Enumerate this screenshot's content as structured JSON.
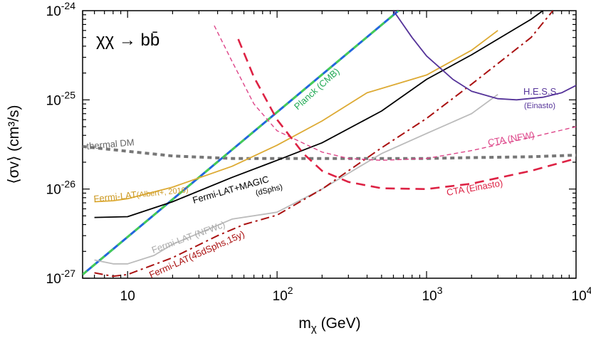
{
  "chart_data": {
    "type": "line",
    "title": "",
    "process_label": "χχ → bb̄",
    "xlabel": "m",
    "xlabel_sub": "χ",
    "xlabel_unit": " (GeV)",
    "ylabel": "⟨σv⟩ (cm³/s)",
    "xscale": "log",
    "yscale": "log",
    "xlim": [
      5,
      10000
    ],
    "ylim": [
      1e-27,
      1e-24
    ],
    "x_ticks": [
      {
        "value": 10,
        "label": "10"
      },
      {
        "value": 100,
        "base": "10",
        "exp": "2"
      },
      {
        "value": 1000,
        "base": "10",
        "exp": "3"
      },
      {
        "value": 10000,
        "base": "10",
        "exp": "4"
      }
    ],
    "y_ticks": [
      {
        "value": 1e-27,
        "base": "10",
        "exp": "-27"
      },
      {
        "value": 1e-26,
        "base": "10",
        "exp": "-26"
      },
      {
        "value": 1e-25,
        "base": "10",
        "exp": "-25"
      },
      {
        "value": 1e-24,
        "base": "10",
        "exp": "-24"
      }
    ],
    "grid": false,
    "series": [
      {
        "key": "thermal",
        "name": "thermal DM",
        "color": "#777777",
        "style": "dotted-thick",
        "x": [
          5,
          10,
          20,
          50,
          100,
          200,
          500,
          1000,
          2000,
          5000,
          10000
        ],
        "y": [
          3e-26,
          2.65e-26,
          2.35e-26,
          2.2e-26,
          2.2e-26,
          2.2e-26,
          2.2e-26,
          2.2e-26,
          2.25e-26,
          2.3e-26,
          2.4e-26
        ]
      },
      {
        "key": "planck",
        "name": "Planck (CMB)",
        "color": "#2266dd",
        "style": "planck",
        "x": [
          5,
          650
        ],
        "y": [
          1.1e-27,
          1e-24
        ]
      },
      {
        "key": "fermi_albert",
        "name": "Fermi-LAT",
        "name_suffix": "(Albert+, 2016)",
        "color": "#ddaa33",
        "style": "solid",
        "x": [
          6,
          8,
          10,
          20,
          50,
          100,
          200,
          400,
          800,
          1000,
          2000,
          3000
        ],
        "y": [
          7.2e-27,
          7.4e-27,
          7.8e-27,
          1.05e-26,
          1.8e-26,
          3.1e-26,
          5.8e-26,
          1.2e-25,
          1.7e-25,
          1.9e-25,
          3.6e-25,
          6e-25
        ]
      },
      {
        "key": "fermi_magic",
        "name": "Fermi-LAT+MAGIC",
        "name_suffix": "(dSphs)",
        "color": "#000000",
        "style": "solid",
        "x": [
          6,
          10,
          20,
          50,
          100,
          200,
          500,
          1000,
          2000,
          5000,
          6000
        ],
        "y": [
          4.8e-27,
          4.9e-27,
          7.2e-27,
          1.35e-26,
          2.1e-26,
          3.3e-26,
          7.5e-26,
          1.7e-25,
          3.2e-25,
          8e-25,
          1e-24
        ]
      },
      {
        "key": "fermi_nfwc",
        "name": "Fermi-LAT (NFWc)",
        "color": "#bbbbbb",
        "style": "solid",
        "x": [
          6,
          8,
          10,
          15,
          20,
          30,
          50,
          100,
          200,
          300,
          500,
          1000,
          2000,
          3000
        ],
        "y": [
          1.6e-27,
          1.45e-27,
          1.45e-27,
          1.8e-27,
          2.4e-27,
          3.2e-27,
          4.6e-27,
          5.5e-27,
          1e-26,
          1.5e-26,
          2.5e-26,
          4.2e-26,
          7e-26,
          1.15e-25
        ]
      },
      {
        "key": "fermi_45d",
        "name": "Fermi-LAT",
        "name_suffix": "(45dSphs,15y)",
        "color": "#aa1111",
        "style": "dashdot",
        "x": [
          6,
          8,
          10,
          20,
          40,
          60,
          100,
          200,
          500,
          1000,
          2000,
          5000,
          7000
        ],
        "y": [
          1.15e-27,
          1.05e-27,
          1.1e-27,
          1.7e-27,
          3e-27,
          4e-27,
          5.1e-27,
          1e-26,
          2.9e-26,
          6.2e-26,
          1.5e-25,
          5e-25,
          1e-24
        ]
      },
      {
        "key": "hess",
        "name": "H.E.S.S.",
        "name_suffix": "(Einasto)",
        "color": "#553399",
        "style": "solid",
        "x": [
          600,
          800,
          1000,
          1500,
          2000,
          3000,
          4000,
          6000,
          8000,
          10000
        ],
        "y": [
          1e-24,
          5e-25,
          3.1e-25,
          1.7e-25,
          1.25e-25,
          1.03e-25,
          1e-25,
          1.07e-25,
          1.2e-25,
          1.45e-25
        ]
      },
      {
        "key": "cta_nfw",
        "name": "CTA (NFW)",
        "color": "#dd4488",
        "style": "dashed-thin",
        "x": [
          38,
          50,
          70,
          100,
          200,
          300,
          500,
          1000,
          2000,
          5000,
          10000
        ],
        "y": [
          6.8e-25,
          2.7e-25,
          9e-26,
          4.5e-26,
          2.6e-26,
          2.2e-26,
          2.1e-26,
          2.2e-26,
          2.7e-26,
          3.8e-26,
          5e-26
        ]
      },
      {
        "key": "cta_einasto",
        "name": "CTA (Einasto)",
        "color": "#dd2244",
        "style": "dashed-thick",
        "x": [
          55,
          70,
          100,
          150,
          200,
          300,
          500,
          1000,
          2000,
          5000,
          10000
        ],
        "y": [
          4.8e-25,
          1.8e-25,
          6e-26,
          2.5e-26,
          1.6e-26,
          1.2e-26,
          1.02e-26,
          1e-26,
          1.15e-26,
          1.6e-26,
          2.2e-26
        ]
      }
    ]
  }
}
